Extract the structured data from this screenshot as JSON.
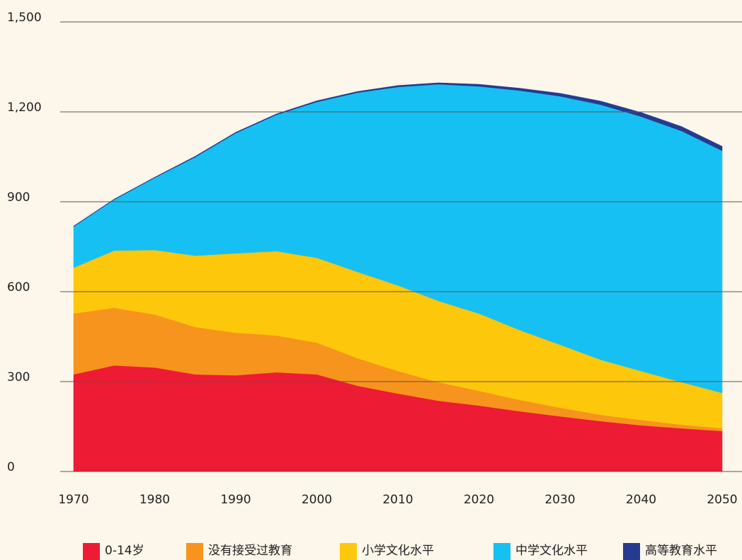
{
  "chart_data": {
    "type": "stacked-area",
    "x": [
      1970,
      1975,
      1980,
      1985,
      1990,
      1995,
      2000,
      2005,
      2010,
      2015,
      2020,
      2025,
      2030,
      2035,
      2040,
      2045,
      2050
    ],
    "xlim": [
      1970,
      2050
    ],
    "xticks": [
      1970,
      1980,
      1990,
      2000,
      2010,
      2020,
      2030,
      2040,
      2050
    ],
    "ylim": [
      0,
      1500
    ],
    "yticks": [
      0,
      300,
      600,
      900,
      {
        "value": 1200,
        "label": "1,200"
      },
      {
        "value": 1500,
        "label": "1,500"
      }
    ],
    "grid": true,
    "legend": "bottom",
    "series": [
      {
        "name": "0-14岁",
        "color": "#ed1b34",
        "values": [
          324,
          354,
          347,
          324,
          321,
          331,
          324,
          286,
          260,
          236,
          220,
          201,
          184,
          168,
          154,
          144,
          135
        ]
      },
      {
        "name": "没有接受过教育",
        "color": "#f7941d",
        "values": [
          203,
          192,
          177,
          158,
          142,
          123,
          106,
          92,
          75,
          62,
          49,
          38,
          29,
          21,
          18,
          12,
          9
        ]
      },
      {
        "name": "小学文化水平",
        "color": "#fdc70c",
        "values": [
          153,
          191,
          215,
          238,
          265,
          281,
          283,
          288,
          286,
          271,
          258,
          233,
          210,
          184,
          163,
          142,
          118
        ]
      },
      {
        "name": "中学文化水平",
        "color": "#17c0f2",
        "values": [
          137,
          170,
          241,
          329,
          401,
          455,
          520,
          598,
          662,
          723,
          758,
          799,
          829,
          851,
          849,
          838,
          808
        ]
      },
      {
        "name": "高等教育水平",
        "color": "#263b8f",
        "values": [
          2,
          2,
          2,
          3,
          3,
          3,
          4,
          4,
          5,
          5,
          7,
          8,
          10,
          12,
          14,
          15,
          15
        ]
      }
    ]
  }
}
